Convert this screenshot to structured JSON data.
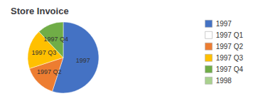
{
  "chart_data": {
    "type": "pie",
    "title": "Store Invoice",
    "categories": [
      "1997",
      "1997 Q2",
      "1997 Q3",
      "1997 Q4"
    ],
    "values": [
      55,
      15,
      18,
      12
    ],
    "colors": [
      "#4472C4",
      "#ED7D31",
      "#FFC000",
      "#70AD47"
    ],
    "legend": "upper right",
    "legend_entries": [
      {
        "name": "1997",
        "color": "#4472C4"
      },
      {
        "name": "1997 Q1",
        "color": "#FFFFFF"
      },
      {
        "name": "1997 Q2",
        "color": "#ED7D31"
      },
      {
        "name": "1997 Q3",
        "color": "#FFC000"
      },
      {
        "name": "1997 Q4",
        "color": "#70AD47"
      },
      {
        "name": "1998",
        "color": "#A9D18E"
      }
    ]
  }
}
